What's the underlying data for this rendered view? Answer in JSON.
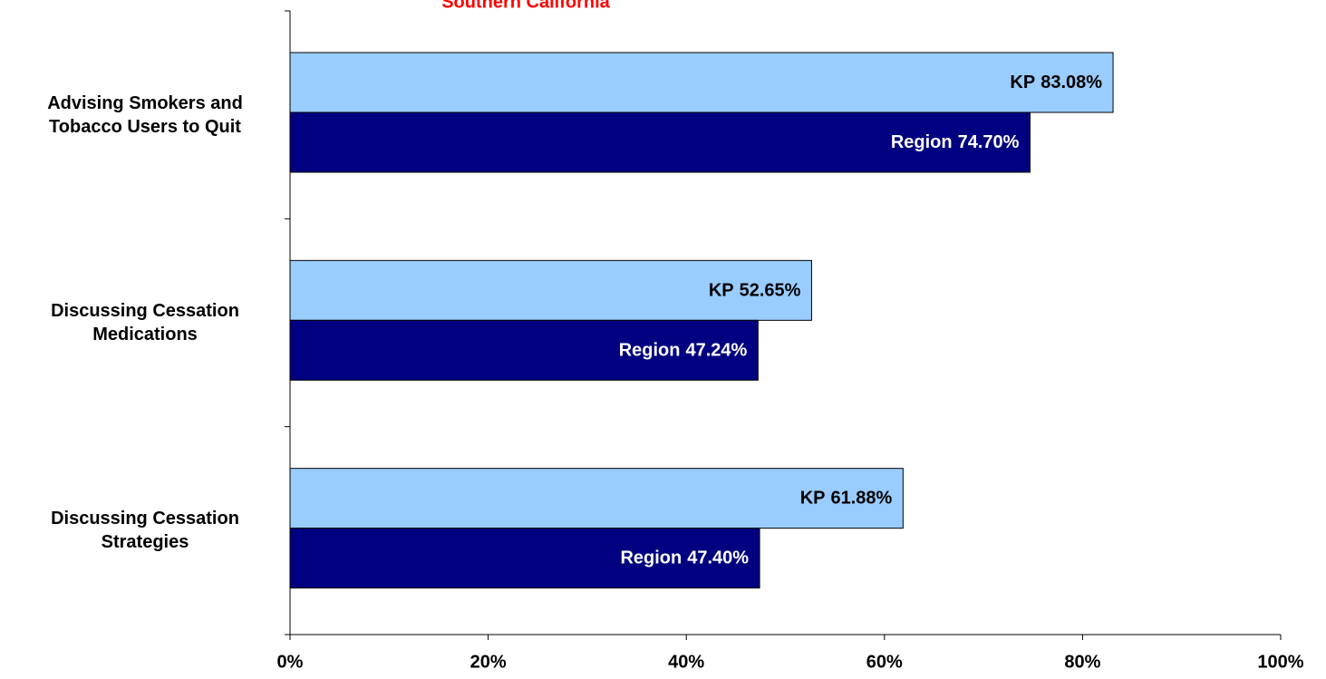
{
  "chart_data": {
    "type": "hbar",
    "title": "Southern California",
    "categories": [
      "Advising Smokers and Tobacco Users to Quit",
      "Discussing Cessation Medications",
      "Discussing Cessation Strategies"
    ],
    "series": [
      {
        "name": "KP",
        "color": "#99ccff",
        "label_color": "#000000",
        "values": [
          83.08,
          52.65,
          61.88
        ],
        "value_labels": [
          "83.08%",
          "52.65%",
          "61.88%"
        ]
      },
      {
        "name": "Region",
        "color": "#000080",
        "label_color": "#ffffff",
        "values": [
          74.7,
          47.24,
          47.4
        ],
        "value_labels": [
          "74.70%",
          "47.24%",
          "47.40%"
        ]
      }
    ],
    "xlim": [
      0,
      100
    ],
    "xticks": [
      {
        "value": 0,
        "label": "0%"
      },
      {
        "value": 20,
        "label": "20%"
      },
      {
        "value": 40,
        "label": "40%"
      },
      {
        "value": 60,
        "label": "60%"
      },
      {
        "value": 80,
        "label": "80%"
      },
      {
        "value": 100,
        "label": "100%"
      }
    ]
  }
}
